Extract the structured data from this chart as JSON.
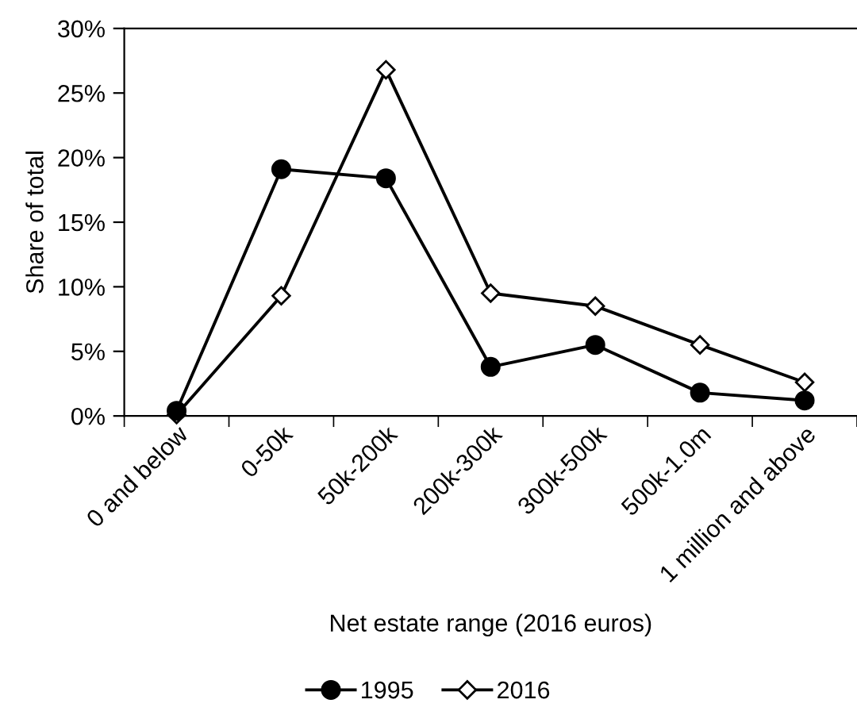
{
  "chart_data": {
    "type": "line",
    "xlabel": "Net estate range (2016 euros)",
    "ylabel": "Share of total",
    "categories": [
      "0 and below",
      "0-50k",
      "50k-200k",
      "200k-300k",
      "300k-500k",
      "500k-1.0m",
      "1 million and above"
    ],
    "series": [
      {
        "name": "1995",
        "color": "#000000",
        "marker": "circle",
        "values": [
          0.4,
          19.1,
          18.4,
          3.8,
          5.5,
          1.8,
          1.2
        ]
      },
      {
        "name": "2016",
        "color": "#000000",
        "marker": "diamond",
        "values": [
          0.1,
          9.3,
          26.8,
          9.5,
          8.5,
          5.5,
          2.6
        ]
      }
    ],
    "ylim": [
      0,
      30
    ],
    "yticks": [
      {
        "value": 0,
        "label": "0%"
      },
      {
        "value": 5,
        "label": "5%"
      },
      {
        "value": 10,
        "label": "10%"
      },
      {
        "value": 15,
        "label": "15%"
      },
      {
        "value": 20,
        "label": "20%"
      },
      {
        "value": 25,
        "label": "25%"
      },
      {
        "value": 30,
        "label": "30%"
      }
    ],
    "grid": false,
    "legend": "bottom",
    "line_style": "solid"
  }
}
